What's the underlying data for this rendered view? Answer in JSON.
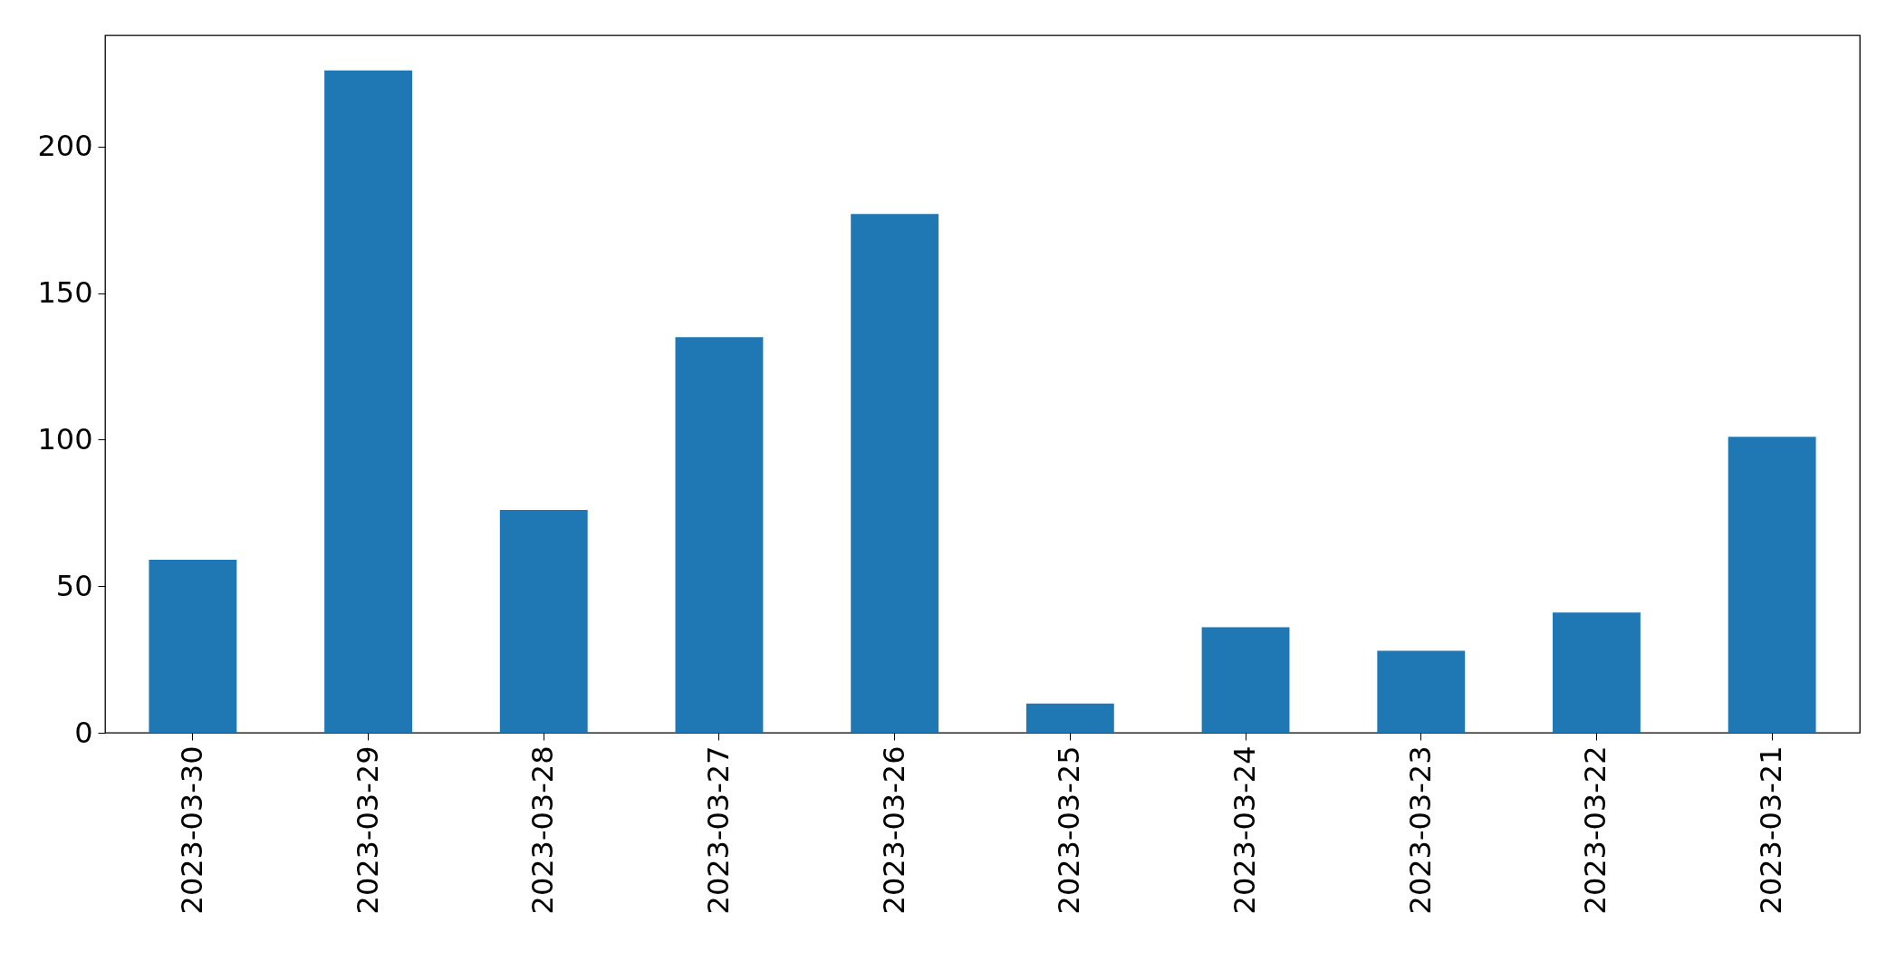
{
  "chart_data": {
    "type": "bar",
    "categories": [
      "2023-03-30",
      "2023-03-29",
      "2023-03-28",
      "2023-03-27",
      "2023-03-26",
      "2023-03-25",
      "2023-03-24",
      "2023-03-23",
      "2023-03-22",
      "2023-03-21"
    ],
    "values": [
      59,
      226,
      76,
      135,
      177,
      10,
      36,
      28,
      41,
      101
    ],
    "color": "#1f77b4",
    "ylim": [
      0,
      238
    ],
    "yticks": [
      0,
      50,
      100,
      150,
      200
    ]
  }
}
